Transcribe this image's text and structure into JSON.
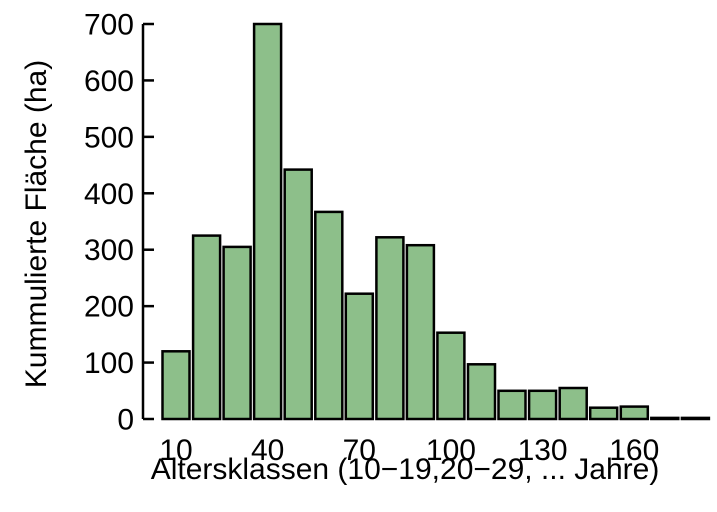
{
  "chart_data": {
    "type": "bar",
    "categories": [
      "10",
      "20",
      "30",
      "40",
      "50",
      "60",
      "70",
      "80",
      "90",
      "100",
      "110",
      "120",
      "130",
      "140",
      "150",
      "160",
      "170",
      "180"
    ],
    "values": [
      120,
      325,
      305,
      700,
      442,
      367,
      222,
      322,
      308,
      153,
      97,
      50,
      50,
      55,
      20,
      22,
      2,
      2
    ],
    "x_tick_labels": [
      "10",
      "40",
      "70",
      "100",
      "130",
      "160"
    ],
    "y_ticks": [
      0,
      100,
      200,
      300,
      400,
      500,
      600,
      700
    ],
    "ylim": [
      0,
      700
    ],
    "xlabel": "Altersklassen  (10−19,20−29, ... Jahre)",
    "ylabel": "Kummulierte Fläche  (ha)",
    "title": "",
    "grid": false,
    "colors": {
      "bar_fill": "#8dbf8a",
      "bar_stroke": "#000000"
    }
  }
}
